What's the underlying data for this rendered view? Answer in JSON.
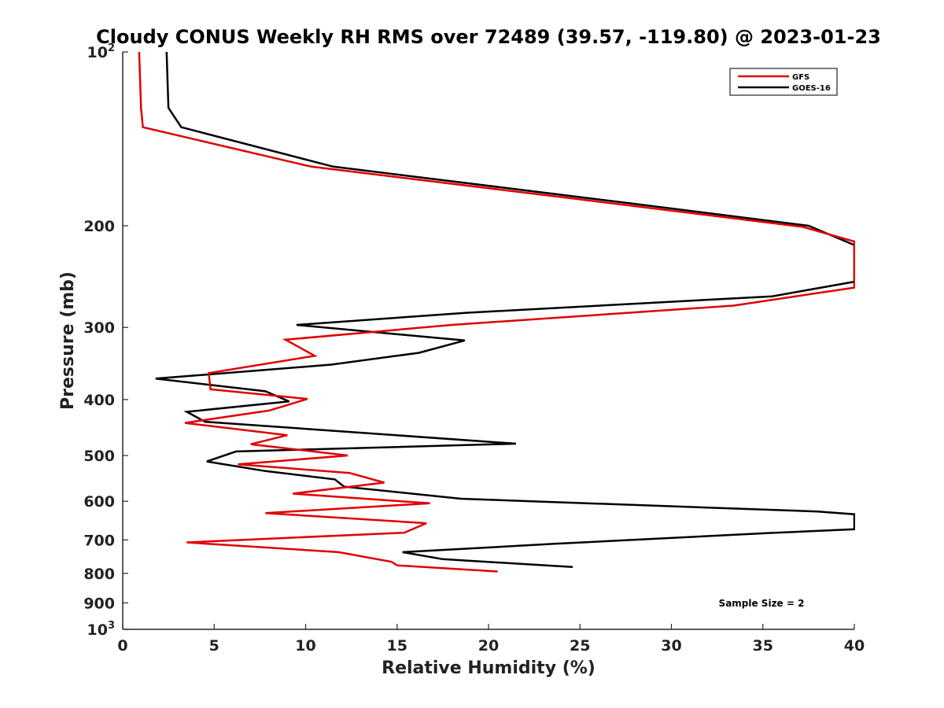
{
  "chart_data": {
    "type": "line",
    "title": "Cloudy CONUS Weekly RH RMS over 72489 (39.57, -119.80) @ 2023-01-23",
    "xlabel": "Relative Humidity (%)",
    "ylabel": "Pressure (mb)",
    "xlim": [
      0,
      40
    ],
    "ylim": [
      100,
      1000
    ],
    "y_scale": "log",
    "y_inverted": true,
    "grid": false,
    "legend_position": "top-right",
    "x_ticks": [
      "0",
      "5",
      "10",
      "15",
      "20",
      "25",
      "30",
      "35",
      "40"
    ],
    "y_ticks": [
      {
        "value": 100,
        "base": "10",
        "exp": "2"
      },
      {
        "value": 200,
        "label": "200"
      },
      {
        "value": 300,
        "label": "300"
      },
      {
        "value": 400,
        "label": "400"
      },
      {
        "value": 500,
        "label": "500"
      },
      {
        "value": 600,
        "label": "600"
      },
      {
        "value": 700,
        "label": "700"
      },
      {
        "value": 800,
        "label": "800"
      },
      {
        "value": 900,
        "label": "900"
      },
      {
        "value": 1000,
        "base": "10",
        "exp": "3"
      }
    ],
    "series": [
      {
        "name": "GFS",
        "color": "#e00000",
        "points": [
          [
            0.9,
            100
          ],
          [
            1.0,
            125
          ],
          [
            1.1,
            135
          ],
          [
            10.3,
            158
          ],
          [
            25.0,
            180
          ],
          [
            37.2,
            201
          ],
          [
            40.0,
            213
          ],
          [
            40.0,
            256
          ],
          [
            33.4,
            275
          ],
          [
            18.0,
            297
          ],
          [
            8.9,
            315
          ],
          [
            10.5,
            336
          ],
          [
            4.7,
            360
          ],
          [
            4.8,
            384
          ],
          [
            10.1,
            399
          ],
          [
            8.0,
            418
          ],
          [
            3.4,
            439
          ],
          [
            9.0,
            461
          ],
          [
            7.0,
            478
          ],
          [
            12.3,
            500
          ],
          [
            6.3,
            518
          ],
          [
            12.4,
            536
          ],
          [
            14.3,
            557
          ],
          [
            9.3,
            582
          ],
          [
            16.8,
            605
          ],
          [
            7.8,
            629
          ],
          [
            16.6,
            655
          ],
          [
            15.4,
            680
          ],
          [
            3.5,
            707
          ],
          [
            11.8,
            735
          ],
          [
            14.7,
            764
          ],
          [
            15.0,
            775
          ],
          [
            20.5,
            794
          ]
        ]
      },
      {
        "name": "GOES-16",
        "color": "#000000",
        "points": [
          [
            2.4,
            100
          ],
          [
            2.5,
            125
          ],
          [
            3.2,
            135
          ],
          [
            11.5,
            158
          ],
          [
            27.2,
            182
          ],
          [
            37.5,
            200
          ],
          [
            40.0,
            216
          ],
          [
            40.0,
            250
          ],
          [
            35.5,
            265
          ],
          [
            18.8,
            283
          ],
          [
            9.5,
            297
          ],
          [
            18.7,
            316
          ],
          [
            16.2,
            332
          ],
          [
            11.4,
            348
          ],
          [
            1.8,
            368
          ],
          [
            7.8,
            387
          ],
          [
            9.1,
            403
          ],
          [
            3.5,
            420
          ],
          [
            4.5,
            437
          ],
          [
            21.5,
            477
          ],
          [
            6.2,
            492
          ],
          [
            4.6,
            512
          ],
          [
            7.8,
            532
          ],
          [
            11.6,
            550
          ],
          [
            12.1,
            566
          ],
          [
            18.5,
            594
          ],
          [
            38.0,
            625
          ],
          [
            40.0,
            632
          ],
          [
            40.0,
            671
          ],
          [
            35.4,
            681
          ],
          [
            23.6,
            711
          ],
          [
            15.3,
            735
          ],
          [
            17.5,
            756
          ],
          [
            24.6,
            780
          ]
        ]
      }
    ],
    "legend_entries": [
      "GFS",
      "GOES-16"
    ],
    "annotations": [
      "Sample Size = 2"
    ]
  }
}
